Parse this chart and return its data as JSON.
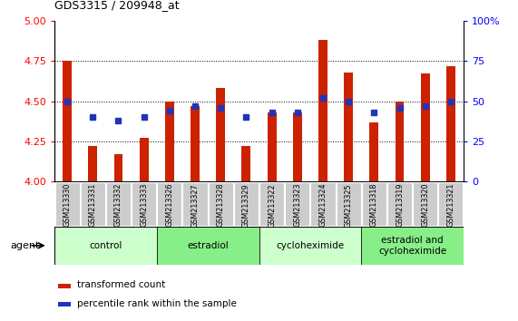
{
  "title": "GDS3315 / 209948_at",
  "samples": [
    "GSM213330",
    "GSM213331",
    "GSM213332",
    "GSM213333",
    "GSM213326",
    "GSM213327",
    "GSM213328",
    "GSM213329",
    "GSM213322",
    "GSM213323",
    "GSM213324",
    "GSM213325",
    "GSM213318",
    "GSM213319",
    "GSM213320",
    "GSM213321"
  ],
  "red_values": [
    4.75,
    4.22,
    4.17,
    4.27,
    4.5,
    4.47,
    4.58,
    4.22,
    4.43,
    4.43,
    4.88,
    4.68,
    4.37,
    4.5,
    4.67,
    4.72
  ],
  "blue_values": [
    50,
    40,
    38,
    40,
    44,
    47,
    46,
    40,
    43,
    43,
    52,
    50,
    43,
    46,
    47,
    50
  ],
  "ylim_left": [
    4.0,
    5.0
  ],
  "ylim_right": [
    0,
    100
  ],
  "yticks_left": [
    4.0,
    4.25,
    4.5,
    4.75,
    5.0
  ],
  "yticks_right": [
    0,
    25,
    50,
    75,
    100
  ],
  "bar_color": "#cc2200",
  "dot_color": "#2233bb",
  "groups": [
    {
      "label": "control",
      "start": 0,
      "end": 4
    },
    {
      "label": "estradiol",
      "start": 4,
      "end": 8
    },
    {
      "label": "cycloheximide",
      "start": 8,
      "end": 12
    },
    {
      "label": "estradiol and\ncycloheximide",
      "start": 12,
      "end": 16
    }
  ],
  "group_light_color": "#ccffcc",
  "group_dark_color": "#88ee88",
  "agent_label": "agent",
  "legend_red": "transformed count",
  "legend_blue": "percentile rank within the sample",
  "background_color": "#ffffff",
  "plot_bg": "#ffffff",
  "tick_bg": "#cccccc",
  "bar_width": 0.35
}
